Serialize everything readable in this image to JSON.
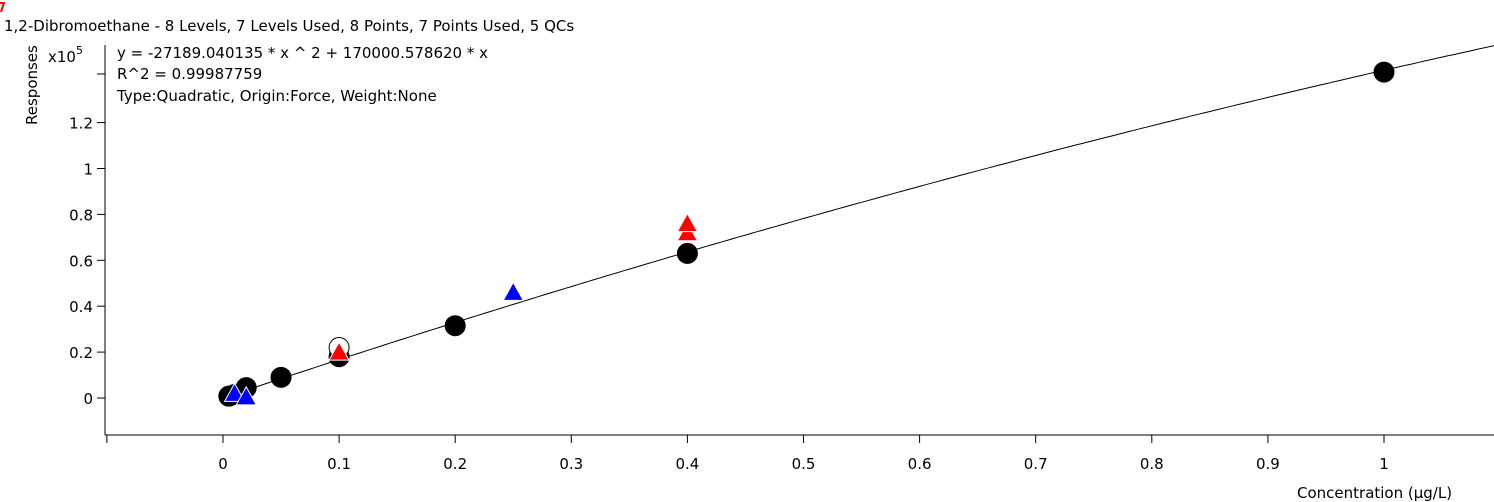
{
  "chart_data": {
    "type": "scatter",
    "title": "1,2-Dibromoethane - 8 Levels, 7 Levels Used, 8 Points, 7 Points Used, 5 QCs",
    "equation": "y = -27189.040135 * x ^ 2  + 170000.578620 * x",
    "r_squared": "R^2 = 0.99987759",
    "fit_info": "Type:Quadratic, Origin:Force, Weight:None",
    "xlabel": "Concentration (µg/L)",
    "ylabel": "Responses",
    "y_multiplier_base": "x10",
    "y_multiplier_exp": "5",
    "x_ticks": [
      "0",
      "0.1",
      "0.2",
      "0.3",
      "0.4",
      "0.5",
      "0.6",
      "0.7",
      "0.8",
      "0.9",
      "1"
    ],
    "y_ticks": [
      "0",
      "0.2",
      "0.4",
      "0.6",
      "0.8",
      "1",
      "1.2"
    ],
    "xlim": [
      -0.1,
      1.09
    ],
    "ylim": [
      -0.13,
      1.52
    ],
    "grid": false,
    "fit_curve": {
      "a": -27189.040135,
      "b": 170000.57862,
      "scale": 100000
    },
    "colors": {
      "calibration": "#000000",
      "qc_blue": "#0000ff",
      "qc_red": "#ff0000",
      "excluded": "#ffffff",
      "curve": "#000000",
      "corner": "#ff0000"
    },
    "series": [
      {
        "kind": "calibration",
        "x": [
          0.005,
          0.01,
          0.02,
          0.05,
          0.1,
          0.2,
          0.4,
          1.0
        ],
        "y": [
          0.008,
          0.015,
          0.045,
          0.09,
          0.18,
          0.315,
          0.63,
          1.42
        ]
      },
      {
        "kind": "excluded",
        "x": [
          0.1
        ],
        "y": [
          0.22
        ]
      },
      {
        "kind": "qc_blue",
        "x": [
          0.01,
          0.02,
          0.25
        ],
        "y": [
          0.02,
          0.005,
          0.46
        ]
      },
      {
        "kind": "qc_red",
        "x": [
          0.1,
          0.4,
          0.4
        ],
        "y": [
          0.2,
          0.72,
          0.76
        ]
      }
    ]
  }
}
